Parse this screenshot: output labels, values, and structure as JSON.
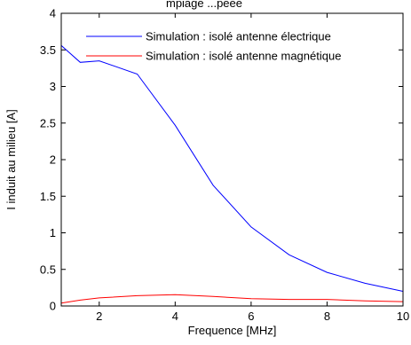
{
  "chart_data": {
    "type": "line",
    "title": "",
    "title_partial_visible": "mpiage ...peee",
    "xlabel": "Frequence [MHz]",
    "ylabel": "I induit au milieu [A]",
    "xlim": [
      1,
      10
    ],
    "ylim": [
      0,
      4
    ],
    "xticks": [
      2,
      4,
      6,
      8,
      10
    ],
    "yticks": [
      0,
      0.5,
      1,
      1.5,
      2,
      2.5,
      3,
      3.5,
      4
    ],
    "ytick_labels": [
      "0",
      "0.5",
      "1",
      "1.5",
      "2",
      "2.5",
      "3",
      "3.5",
      "4"
    ],
    "xtick_labels": [
      "2",
      "4",
      "6",
      "8",
      "10"
    ],
    "grid": false,
    "legend_position": "top-right",
    "series": [
      {
        "name": "Simulation : isolé antenne électrique",
        "color": "#0000ff",
        "x": [
          1,
          1.5,
          2,
          3,
          4,
          5,
          6,
          7,
          8,
          9,
          10
        ],
        "y": [
          3.56,
          3.33,
          3.35,
          3.17,
          2.47,
          1.65,
          1.08,
          0.7,
          0.46,
          0.31,
          0.2
        ]
      },
      {
        "name": "Simulation : isolé antenne magnétique",
        "color": "#ff0000",
        "x": [
          1,
          1.5,
          2,
          3,
          4,
          5,
          6,
          7,
          8,
          9,
          10
        ],
        "y": [
          0.04,
          0.08,
          0.11,
          0.14,
          0.155,
          0.13,
          0.1,
          0.09,
          0.09,
          0.07,
          0.06
        ]
      }
    ]
  }
}
